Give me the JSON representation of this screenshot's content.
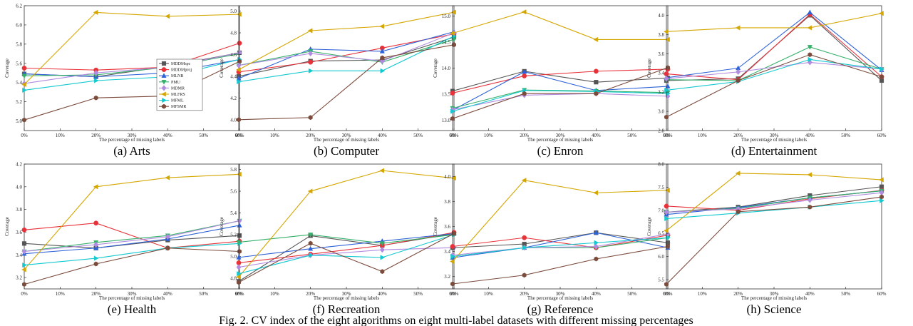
{
  "figure_caption": "Fig. 2. CV index of the eight algorithms on eight multi-label datasets with different missing percentages",
  "series_styles": [
    {
      "name": "MDDMspc",
      "color": "#555555",
      "marker": "square"
    },
    {
      "name": "MDDMproj",
      "color": "#e8323a",
      "marker": "circle"
    },
    {
      "name": "MLNB",
      "color": "#2d62d8",
      "marker": "triangle-up"
    },
    {
      "name": "PMU",
      "color": "#35b06a",
      "marker": "triangle-down"
    },
    {
      "name": "MDMR",
      "color": "#b08be0",
      "marker": "diamond"
    },
    {
      "name": "MLFRS",
      "color": "#d4a600",
      "marker": "triangle-left"
    },
    {
      "name": "MFML",
      "color": "#12c9cf",
      "marker": "triangle-right"
    },
    {
      "name": "MFSMR",
      "color": "#7b4b3c",
      "marker": "hexagon"
    }
  ],
  "chart_data": [
    {
      "type": "line",
      "caption": "(a) Arts",
      "xlabel": "The percentage of missing labels",
      "ylabel": "Coverage",
      "x": [
        0,
        20,
        40,
        60
      ],
      "xticks": [
        "0%",
        "10%",
        "20%",
        "30%",
        "40%",
        "50%",
        "60%"
      ],
      "xlim": [
        0,
        60
      ],
      "ylim": [
        4.9,
        6.2
      ],
      "yticks": [
        "5.0",
        "5.2",
        "5.4",
        "5.6",
        "5.8",
        "6.0",
        "6.2"
      ],
      "legend": "inside-right",
      "series": [
        {
          "name": "MDDMspc",
          "values": [
            5.49,
            5.46,
            5.57,
            5.71
          ]
        },
        {
          "name": "MDDMproj",
          "values": [
            5.55,
            5.53,
            5.56,
            5.81
          ]
        },
        {
          "name": "MLNB",
          "values": [
            5.49,
            5.46,
            5.5,
            5.64
          ]
        },
        {
          "name": "PMU",
          "values": [
            5.47,
            5.48,
            5.56,
            5.7
          ]
        },
        {
          "name": "MDMR",
          "values": [
            5.39,
            5.5,
            5.56,
            5.71
          ]
        },
        {
          "name": "MLFRS",
          "values": [
            5.38,
            6.13,
            6.09,
            6.11
          ]
        },
        {
          "name": "MFML",
          "values": [
            5.32,
            5.42,
            5.46,
            5.64
          ]
        },
        {
          "name": "MFSMR",
          "values": [
            5.01,
            5.24,
            5.26,
            5.62
          ]
        }
      ]
    },
    {
      "type": "line",
      "caption": "(b) Computer",
      "xlabel": "The percentage of missing labels",
      "ylabel": "Coverage",
      "x": [
        0,
        20,
        40,
        60
      ],
      "xticks": [
        "0%",
        "10%",
        "20%",
        "30%",
        "40%",
        "50%",
        "60%"
      ],
      "xlim": [
        0,
        60
      ],
      "ylim": [
        3.9,
        5.05
      ],
      "yticks": [
        "4.0",
        "4.2",
        "4.4",
        "4.6",
        "4.8",
        "5.0"
      ],
      "series": [
        {
          "name": "MDDMspc",
          "values": [
            4.4,
            4.54,
            4.55,
            4.76
          ]
        },
        {
          "name": "MDDMproj",
          "values": [
            4.44,
            4.53,
            4.66,
            4.79
          ]
        },
        {
          "name": "MLNB",
          "values": [
            4.38,
            4.65,
            4.63,
            4.81
          ]
        },
        {
          "name": "PMU",
          "values": [
            4.5,
            4.63,
            4.53,
            4.74
          ]
        },
        {
          "name": "MDMR",
          "values": [
            4.5,
            4.61,
            4.54,
            4.8
          ]
        },
        {
          "name": "MLFRS",
          "values": [
            4.46,
            4.82,
            4.86,
            4.99
          ]
        },
        {
          "name": "MFML",
          "values": [
            4.35,
            4.45,
            4.45,
            4.77
          ]
        },
        {
          "name": "MFSMR",
          "values": [
            4.0,
            4.02,
            4.57,
            4.69
          ]
        }
      ]
    },
    {
      "type": "line",
      "caption": "(c) Enron",
      "xlabel": "The percentage of missing labels",
      "ylabel": "Coverage",
      "x": [
        0,
        20,
        40,
        60
      ],
      "xticks": [
        "0%",
        "10%",
        "20%",
        "30%",
        "40%",
        "50%",
        "60%"
      ],
      "xlim": [
        0,
        60
      ],
      "ylim": [
        12.8,
        15.2
      ],
      "yticks": [
        "13.0",
        "13.5",
        "14.0",
        "14.5",
        "15.0"
      ],
      "series": [
        {
          "name": "MDDMspc",
          "values": [
            13.56,
            13.94,
            13.73,
            13.81
          ]
        },
        {
          "name": "MDDMproj",
          "values": [
            13.52,
            13.85,
            13.94,
            13.98
          ]
        },
        {
          "name": "MLNB",
          "values": [
            13.19,
            13.93,
            13.57,
            13.65
          ]
        },
        {
          "name": "PMU",
          "values": [
            13.23,
            13.58,
            13.56,
            13.53
          ]
        },
        {
          "name": "MDMR",
          "values": [
            13.2,
            13.48,
            13.51,
            13.46
          ]
        },
        {
          "name": "MLFRS",
          "values": [
            14.67,
            15.08,
            14.55,
            14.55
          ]
        },
        {
          "name": "MFML",
          "values": [
            13.17,
            13.57,
            13.55,
            13.51
          ]
        },
        {
          "name": "MFSMR",
          "values": [
            13.03,
            13.51,
            13.51,
            14.01
          ]
        }
      ]
    },
    {
      "type": "line",
      "caption": "(d) Entertainment",
      "xlabel": "The percentage of missing labels",
      "ylabel": "Coverage",
      "x": [
        0,
        20,
        40,
        60
      ],
      "xticks": [
        "0%",
        "10%",
        "20%",
        "30%",
        "40%",
        "50%",
        "60%"
      ],
      "xlim": [
        0,
        60
      ],
      "ylim": [
        2.8,
        4.1
      ],
      "yticks": [
        "2.8",
        "3.0",
        "3.2",
        "3.4",
        "3.6",
        "3.8",
        "4.0"
      ],
      "series": [
        {
          "name": "MDDMspc",
          "values": [
            3.32,
            3.34,
            4.0,
            3.32
          ]
        },
        {
          "name": "MDDMproj",
          "values": [
            3.39,
            3.33,
            4.01,
            3.36
          ]
        },
        {
          "name": "MLNB",
          "values": [
            3.35,
            3.45,
            4.03,
            3.43
          ]
        },
        {
          "name": "PMU",
          "values": [
            3.33,
            3.32,
            3.67,
            3.44
          ]
        },
        {
          "name": "MDMR",
          "values": [
            3.34,
            3.41,
            3.51,
            3.44
          ]
        },
        {
          "name": "MLFRS",
          "values": [
            3.83,
            3.87,
            3.87,
            4.02
          ]
        },
        {
          "name": "MFML",
          "values": [
            3.22,
            3.31,
            3.54,
            3.44
          ]
        },
        {
          "name": "MFSMR",
          "values": [
            2.94,
            3.32,
            3.59,
            3.36
          ]
        }
      ]
    },
    {
      "type": "line",
      "caption": "(e) Health",
      "xlabel": "The percentage of missing labels",
      "ylabel": "Coverage",
      "x": [
        0,
        20,
        40,
        60
      ],
      "xticks": [
        "0%",
        "10%",
        "20%",
        "30%",
        "40%",
        "50%",
        "60%"
      ],
      "xlim": [
        0,
        60
      ],
      "ylim": [
        3.1,
        4.2
      ],
      "yticks": [
        "3.2",
        "3.4",
        "3.6",
        "3.8",
        "4.0",
        "4.2"
      ],
      "series": [
        {
          "name": "MDDMspc",
          "values": [
            3.5,
            3.46,
            3.53,
            3.57
          ]
        },
        {
          "name": "MDDMproj",
          "values": [
            3.62,
            3.68,
            3.46,
            3.52
          ]
        },
        {
          "name": "MLNB",
          "values": [
            3.41,
            3.46,
            3.54,
            3.66
          ]
        },
        {
          "name": "PMU",
          "values": [
            3.43,
            3.51,
            3.57,
            3.7
          ]
        },
        {
          "name": "MDMR",
          "values": [
            3.43,
            3.49,
            3.56,
            3.7
          ]
        },
        {
          "name": "MLFRS",
          "values": [
            3.27,
            4.0,
            4.08,
            4.11
          ]
        },
        {
          "name": "MFML",
          "values": [
            3.31,
            3.37,
            3.46,
            3.5
          ]
        },
        {
          "name": "MFSMR",
          "values": [
            3.14,
            3.32,
            3.46,
            3.43
          ]
        }
      ]
    },
    {
      "type": "line",
      "caption": "(f) Recreation",
      "xlabel": "The percentage of missing labels",
      "ylabel": "Coverage",
      "x": [
        0,
        20,
        40,
        60
      ],
      "xticks": [
        "0%",
        "10%",
        "20%",
        "30%",
        "40%",
        "50%",
        "60%"
      ],
      "xlim": [
        0,
        60
      ],
      "ylim": [
        4.7,
        5.85
      ],
      "yticks": [
        "4.8",
        "5.0",
        "5.2",
        "5.4",
        "5.6",
        "5.8"
      ],
      "series": [
        {
          "name": "MDDMspc",
          "values": [
            4.77,
            5.19,
            5.1,
            5.21
          ]
        },
        {
          "name": "MDDMproj",
          "values": [
            4.94,
            5.02,
            5.1,
            5.22
          ]
        },
        {
          "name": "MLNB",
          "values": [
            4.99,
            5.07,
            5.14,
            5.21
          ]
        },
        {
          "name": "PMU",
          "values": [
            5.13,
            5.2,
            5.12,
            5.2
          ]
        },
        {
          "name": "MDMR",
          "values": [
            4.9,
            5.01,
            5.06,
            5.08
          ]
        },
        {
          "name": "MLFRS",
          "values": [
            4.81,
            5.6,
            5.79,
            5.72
          ]
        },
        {
          "name": "MFML",
          "values": [
            4.84,
            5.01,
            4.99,
            5.2
          ]
        },
        {
          "name": "MFSMR",
          "values": [
            4.76,
            5.12,
            4.86,
            5.21
          ]
        }
      ]
    },
    {
      "type": "line",
      "caption": "(g) Reference",
      "xlabel": "The percentage of missing labels",
      "ylabel": "Coverage",
      "x": [
        0,
        20,
        40,
        60
      ],
      "xticks": [
        "0%",
        "10%",
        "20%",
        "30%",
        "40%",
        "50%",
        "60%"
      ],
      "xlim": [
        0,
        60
      ],
      "ylim": [
        3.1,
        4.1
      ],
      "yticks": [
        "3.2",
        "3.4",
        "3.6",
        "3.8",
        "4.0"
      ],
      "series": [
        {
          "name": "MDDMspc",
          "values": [
            3.43,
            3.46,
            3.55,
            3.47
          ]
        },
        {
          "name": "MDDMproj",
          "values": [
            3.44,
            3.51,
            3.43,
            3.53
          ]
        },
        {
          "name": "MLNB",
          "values": [
            3.35,
            3.43,
            3.55,
            3.43
          ]
        },
        {
          "name": "PMU",
          "values": [
            3.36,
            3.43,
            3.43,
            3.51
          ]
        },
        {
          "name": "MDMR",
          "values": [
            3.37,
            3.43,
            3.44,
            3.54
          ]
        },
        {
          "name": "MLFRS",
          "values": [
            3.32,
            3.97,
            3.87,
            3.89
          ]
        },
        {
          "name": "MFML",
          "values": [
            3.36,
            3.43,
            3.47,
            3.51
          ]
        },
        {
          "name": "MFSMR",
          "values": [
            3.14,
            3.21,
            3.34,
            3.44
          ]
        }
      ]
    },
    {
      "type": "line",
      "caption": "(h) Science",
      "xlabel": "The percentage of missing labels",
      "ylabel": "Coverage",
      "x": [
        0,
        20,
        40,
        60
      ],
      "xticks": [
        "0%",
        "10%",
        "20%",
        "30%",
        "40%",
        "50%",
        "60%"
      ],
      "xlim": [
        0,
        60
      ],
      "ylim": [
        5.3,
        8.0
      ],
      "yticks": [
        "5.5",
        "6.0",
        "6.5",
        "7.0",
        "7.5",
        "8.0"
      ],
      "series": [
        {
          "name": "MDDMspc",
          "values": [
            6.96,
            7.07,
            7.32,
            7.51
          ]
        },
        {
          "name": "MDDMproj",
          "values": [
            7.09,
            7.0,
            7.25,
            7.43
          ]
        },
        {
          "name": "MLNB",
          "values": [
            6.91,
            7.06,
            7.27,
            7.42
          ]
        },
        {
          "name": "PMU",
          "values": [
            6.96,
            7.04,
            7.27,
            7.42
          ]
        },
        {
          "name": "MDMR",
          "values": [
            6.96,
            7.03,
            7.22,
            7.38
          ]
        },
        {
          "name": "MLFRS",
          "values": [
            6.56,
            7.8,
            7.77,
            7.66
          ]
        },
        {
          "name": "MFML",
          "values": [
            6.82,
            6.94,
            7.07,
            7.21
          ]
        },
        {
          "name": "MFSMR",
          "values": [
            5.4,
            6.97,
            7.07,
            7.29
          ]
        }
      ]
    }
  ]
}
